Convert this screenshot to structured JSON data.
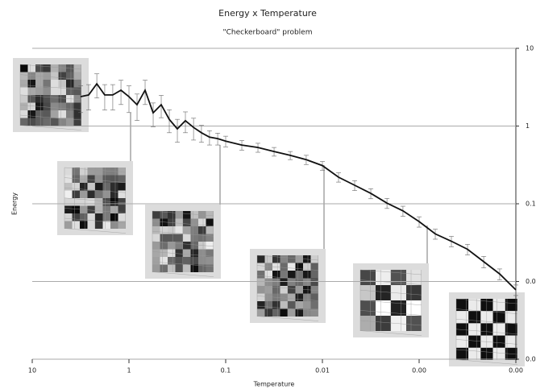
{
  "chart_data": {
    "type": "line",
    "title": "Energy x Temperature",
    "subtitle": "\"Checkerboard\" problem",
    "x_label": "Temperature",
    "y_label": "Energy",
    "x_log": true,
    "y_log": true,
    "y_axis_side": "right",
    "grid": true,
    "xlim": [
      10,
      0.0001
    ],
    "xticks": [
      10,
      1,
      0.1,
      0.01,
      {
        "value": 0.001,
        "label": "0.00"
      },
      {
        "value": 0.0001,
        "label": "0.00"
      }
    ],
    "ylim": [
      0.001,
      10
    ],
    "yticks": [
      10,
      1,
      0.1,
      {
        "value": 0.01,
        "label": "0.0"
      },
      {
        "value": 0.001,
        "label": "0.0"
      }
    ],
    "x": [
      3.16,
      2.61,
      2.15,
      1.78,
      1.47,
      1.21,
      1.0,
      0.825,
      0.681,
      0.562,
      0.464,
      0.383,
      0.316,
      0.261,
      0.215,
      0.178,
      0.147,
      0.121,
      0.1,
      0.0681,
      0.0464,
      0.0316,
      0.0215,
      0.0147,
      0.01,
      0.00681,
      0.00464,
      0.00316,
      0.00215,
      0.00147,
      0.001,
      0.000681,
      0.000464,
      0.000316,
      0.000215,
      0.000147,
      0.0001
    ],
    "series": [
      {
        "color": "#111111",
        "values": [
          2.39,
          2.51,
          3.5,
          2.51,
          2.51,
          2.89,
          2.39,
          1.88,
          2.89,
          1.48,
          1.88,
          1.22,
          0.92,
          1.17,
          0.96,
          0.82,
          0.72,
          0.69,
          0.64,
          0.57,
          0.53,
          0.47,
          0.42,
          0.37,
          0.31,
          0.22,
          0.173,
          0.136,
          0.102,
          0.081,
          0.059,
          0.041,
          0.033,
          0.026,
          0.018,
          0.0125,
          0.0078
        ],
        "errors": [
          0.9,
          0.9,
          1.2,
          0.9,
          0.9,
          1.0,
          0.9,
          0.7,
          1.0,
          0.5,
          0.6,
          0.4,
          0.3,
          0.35,
          0.3,
          0.2,
          0.15,
          0.12,
          0.1,
          0.08,
          0.07,
          0.06,
          0.05,
          0.05,
          0.04,
          0.03,
          0.025,
          0.02,
          0.015,
          0.012,
          0.009,
          0.006,
          0.005,
          0.004,
          0.003,
          0.002,
          0.0012
        ]
      }
    ]
  }
}
